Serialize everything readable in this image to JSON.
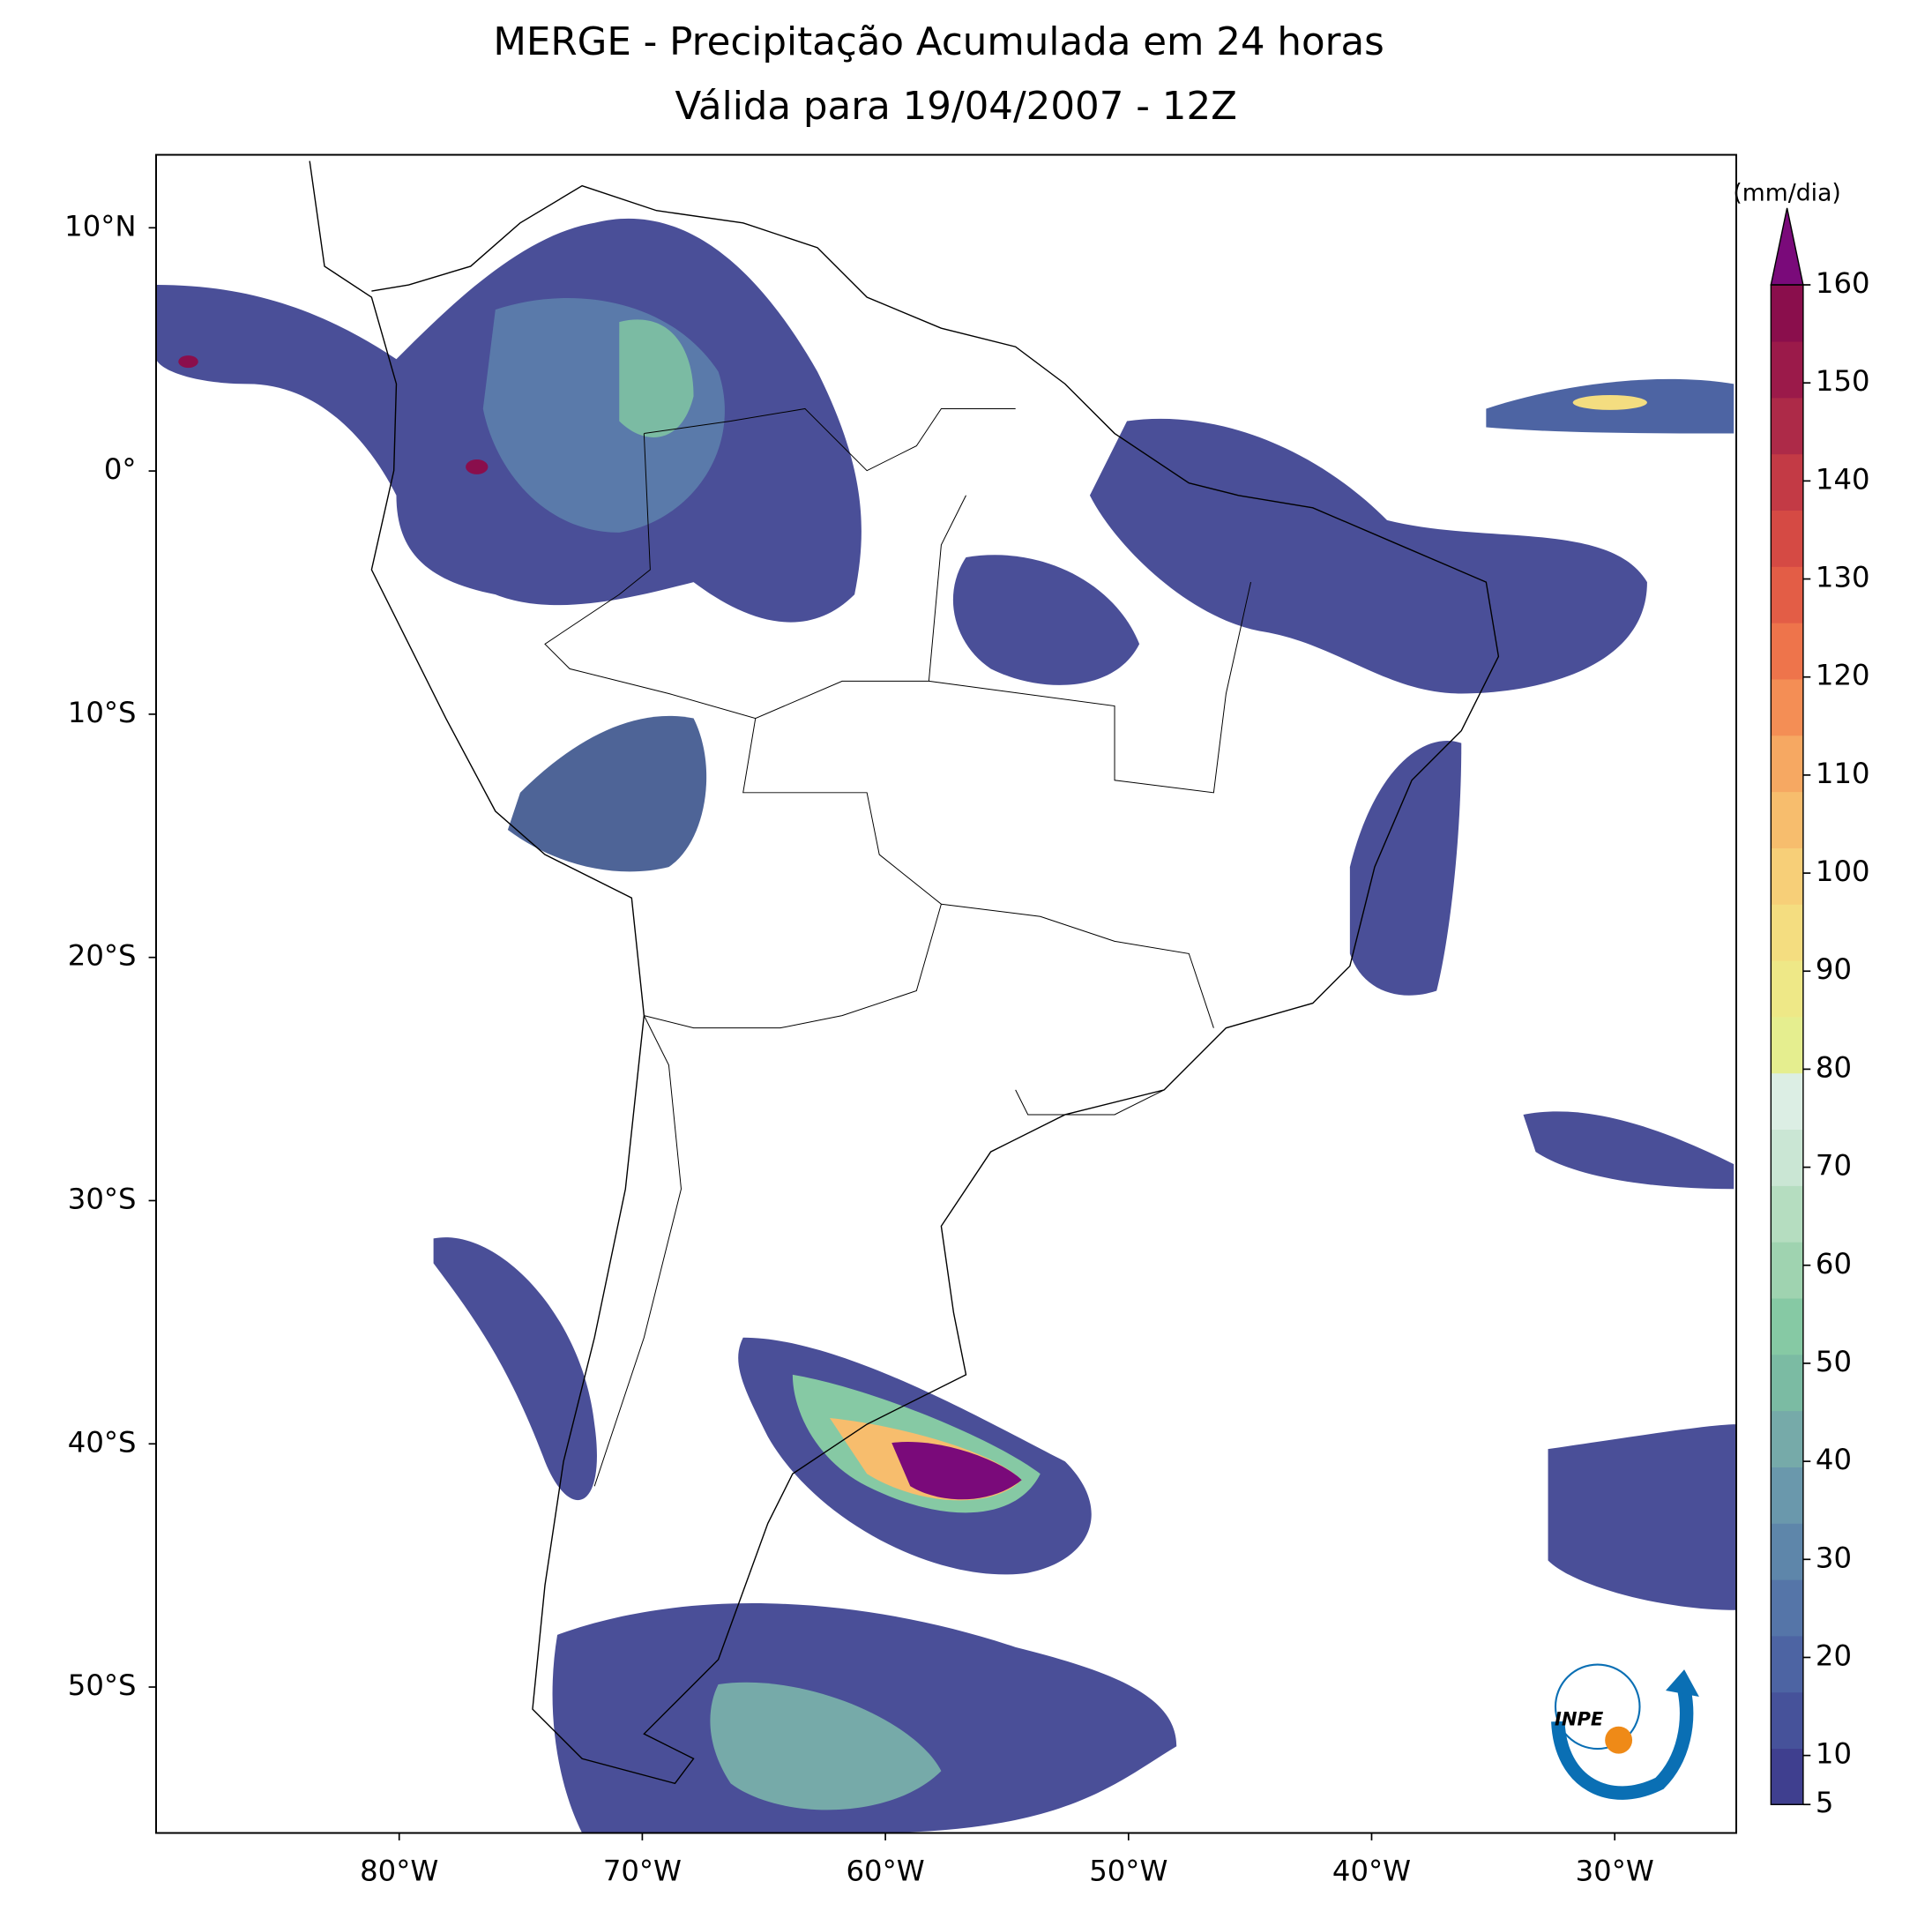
{
  "map": {
    "title": [
      "MERGE - Precipitação Acumulada em 24 horas",
      "Válida para 19/04/2007 - 12Z"
    ],
    "lonlim": [
      -90,
      -25
    ],
    "latlim": [
      -56,
      13
    ],
    "lon_ticks": [
      {
        "value": -80,
        "label": "80°W"
      },
      {
        "value": -70,
        "label": "70°W"
      },
      {
        "value": -60,
        "label": "60°W"
      },
      {
        "value": -50,
        "label": "50°W"
      },
      {
        "value": -40,
        "label": "40°W"
      },
      {
        "value": -30,
        "label": "30°W"
      }
    ],
    "lat_ticks": [
      {
        "value": 10,
        "label": "10°N"
      },
      {
        "value": 0,
        "label": "0°"
      },
      {
        "value": -10,
        "label": "10°S"
      },
      {
        "value": -20,
        "label": "20°S"
      },
      {
        "value": -30,
        "label": "30°S"
      },
      {
        "value": -40,
        "label": "40°S"
      },
      {
        "value": -50,
        "label": "50°S"
      }
    ],
    "colorbar": {
      "label": "(mm/dia)",
      "ticks": [
        5,
        10,
        20,
        30,
        40,
        50,
        60,
        70,
        80,
        90,
        100,
        110,
        120,
        130,
        140,
        150,
        160
      ],
      "colors": [
        "#3f3f8f",
        "#46529a",
        "#4d64a3",
        "#5575a8",
        "#5e86aa",
        "#6a98ac",
        "#76aaa9",
        "#7bbba3",
        "#86c9a4",
        "#9fd3b0",
        "#b5ddc0",
        "#cae6d4",
        "#dceee4",
        "#e5ee8f",
        "#eee887",
        "#f4dd80",
        "#f7cf78",
        "#f7bd6d",
        "#f6a862",
        "#f48e55",
        "#ee744b",
        "#e35d46",
        "#d54a44",
        "#c33a45",
        "#ad2a48",
        "#9b1a4a",
        "#8a0e4c"
      ],
      "extend_color": "#7a0a7a"
    },
    "logo": "INPE"
  }
}
